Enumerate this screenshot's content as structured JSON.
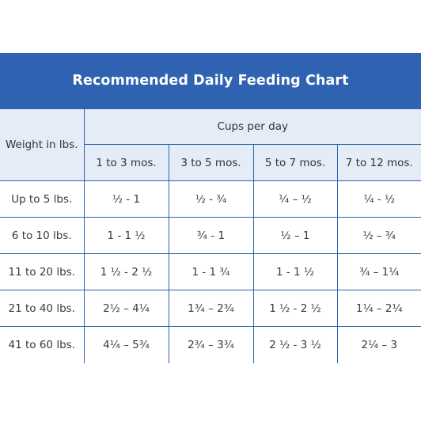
{
  "title": "Recommended Daily Feeding Chart",
  "colors": {
    "header_bg": "#2f62b0",
    "header_text": "#ffffff",
    "subheader_bg": "#e4ecf8",
    "grid": "#2f62b0"
  },
  "table": {
    "weight_header": "Weight in lbs.",
    "group_header": "Cups per day",
    "age_columns": [
      "1 to 3 mos.",
      "3 to 5 mos.",
      "5 to 7 mos.",
      "7 to 12 mos."
    ],
    "rows": [
      {
        "weight": "Up to 5 lbs.",
        "values": [
          "½ - 1",
          "½ - ¾",
          "¼ – ½",
          "¼ - ½"
        ]
      },
      {
        "weight": "6 to 10 lbs.",
        "values": [
          "1 - 1 ½",
          "¾ - 1",
          "½ – 1",
          "½ – ¾"
        ]
      },
      {
        "weight": "11 to 20 lbs.",
        "values": [
          "1 ½ - 2 ½",
          "1 - 1 ¾",
          "1 - 1 ½",
          "¾ – 1¼"
        ]
      },
      {
        "weight": "21 to 40 lbs.",
        "values": [
          "2½ – 4¼",
          "1¾ – 2¾",
          "1 ½ - 2 ½",
          "1¼ – 2¼"
        ]
      },
      {
        "weight": "41 to 60 lbs.",
        "values": [
          "4¼ – 5¾",
          "2¾ – 3¾",
          "2 ½ - 3 ½",
          "2¼ – 3"
        ]
      }
    ]
  }
}
